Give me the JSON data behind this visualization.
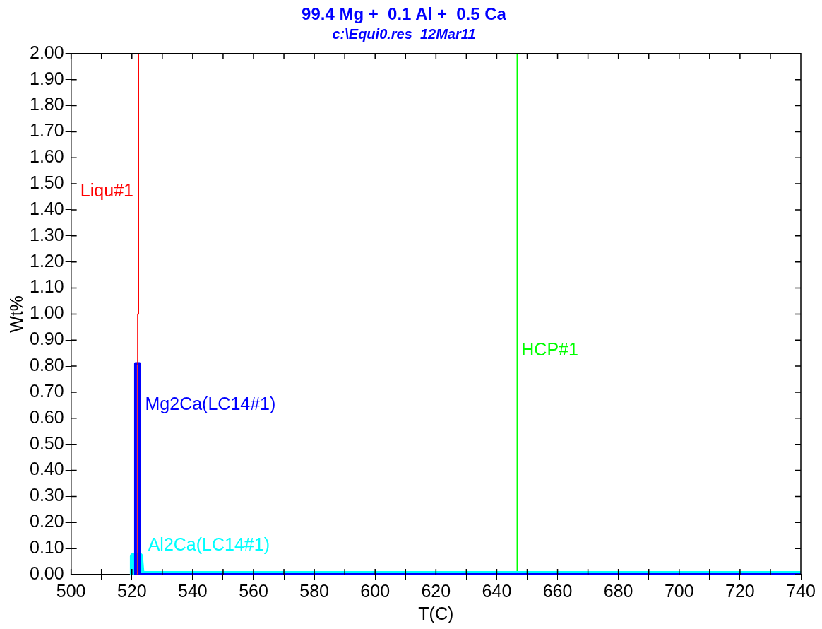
{
  "chart_data": {
    "type": "line",
    "title": "99.4 Mg +  0.1 Al +  0.5 Ca",
    "subtitle": "c:\\Equi0.res  12Mar11",
    "xlabel": "T(C)",
    "ylabel": "Wt%",
    "xlim": [
      500,
      740
    ],
    "xticks": [
      500,
      {
        "value": 510,
        "label": null
      },
      520,
      {
        "value": 530,
        "label": null
      },
      540,
      {
        "value": 550,
        "label": null
      },
      560,
      {
        "value": 570,
        "label": null
      },
      580,
      {
        "value": 590,
        "label": null
      },
      600,
      {
        "value": 610,
        "label": null
      },
      620,
      {
        "value": 630,
        "label": null
      },
      640,
      {
        "value": 650,
        "label": null
      },
      660,
      {
        "value": 670,
        "label": null
      },
      680,
      {
        "value": 690,
        "label": null
      },
      700,
      {
        "value": 710,
        "label": null
      },
      720,
      {
        "value": 730,
        "label": null
      },
      740
    ],
    "ylim": [
      0,
      2
    ],
    "yticks": [
      {
        "value": 0,
        "label": "0.00"
      },
      {
        "value": 0.1,
        "label": "0.10"
      },
      {
        "value": 0.2,
        "label": "0.20"
      },
      {
        "value": 0.3,
        "label": "0.30"
      },
      {
        "value": 0.4,
        "label": "0.40"
      },
      {
        "value": 0.5,
        "label": "0.50"
      },
      {
        "value": 0.6,
        "label": "0.60"
      },
      {
        "value": 0.7,
        "label": "0.70"
      },
      {
        "value": 0.8,
        "label": "0.80"
      },
      {
        "value": 0.9,
        "label": "0.90"
      },
      {
        "value": 1,
        "label": "1.00"
      },
      {
        "value": 1.1,
        "label": "1.10"
      },
      {
        "value": 1.2,
        "label": "1.20"
      },
      {
        "value": 1.3,
        "label": "1.30"
      },
      {
        "value": 1.4,
        "label": "1.40"
      },
      {
        "value": 1.5,
        "label": "1.50"
      },
      {
        "value": 1.6,
        "label": "1.60"
      },
      {
        "value": 1.7,
        "label": "1.70"
      },
      {
        "value": 1.8,
        "label": "1.80"
      },
      {
        "value": 1.9,
        "label": "1.90"
      },
      {
        "value": 2,
        "label": "2.00"
      }
    ],
    "grid": false,
    "legend": false,
    "marker": "none",
    "line_style": "solid",
    "series": [
      {
        "name": "Liqu#1",
        "color": "#ff0000",
        "x": [
          521.9,
          521.9,
          522.2,
          522.2
        ],
        "values": [
          0,
          1.0,
          1.0,
          2.0
        ]
      },
      {
        "name": "Mg2Ca(LC14#1)",
        "color": "#0000ff",
        "x": [
          521.2,
          521.2,
          522.5,
          522.5,
          740
        ],
        "values": [
          0,
          0.81,
          0.81,
          0,
          0
        ]
      },
      {
        "name": "Al2Ca(LC14#1)",
        "color": "#00ffff",
        "x": [
          520.5,
          520.5,
          522.5,
          523,
          740
        ],
        "values": [
          0,
          0.07,
          0.07,
          0,
          0
        ]
      },
      {
        "name": "HCP#1",
        "color": "#00ff00",
        "x": [
          646.7,
          646.7
        ],
        "values": [
          0,
          2.0
        ]
      }
    ]
  }
}
